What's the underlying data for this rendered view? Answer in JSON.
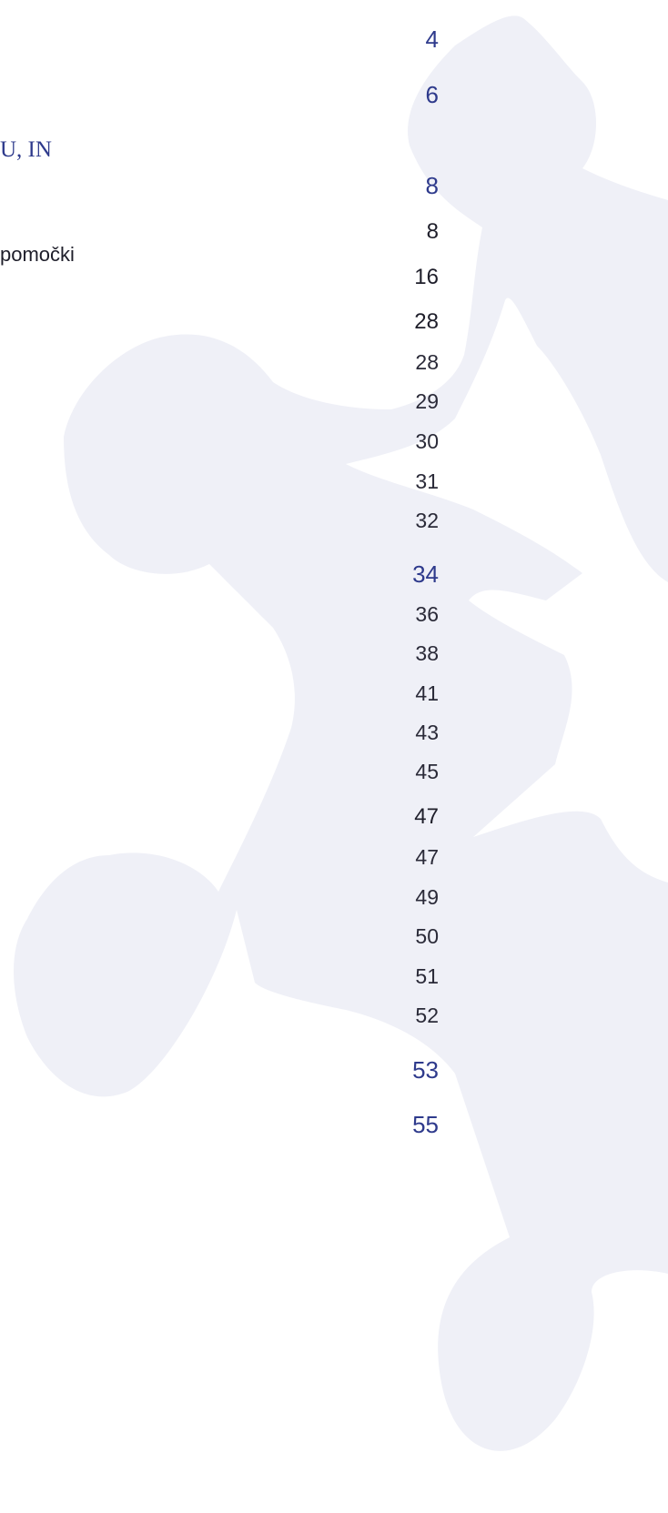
{
  "fragments": [
    "U, IN",
    "pomočki"
  ],
  "pages": [
    "4",
    "6",
    "8",
    "8",
    "16",
    "28",
    "28",
    "29",
    "30",
    "31",
    "32",
    "34",
    "36",
    "38",
    "41",
    "43",
    "45",
    "47",
    "47",
    "49",
    "50",
    "51",
    "52",
    "53",
    "55"
  ]
}
